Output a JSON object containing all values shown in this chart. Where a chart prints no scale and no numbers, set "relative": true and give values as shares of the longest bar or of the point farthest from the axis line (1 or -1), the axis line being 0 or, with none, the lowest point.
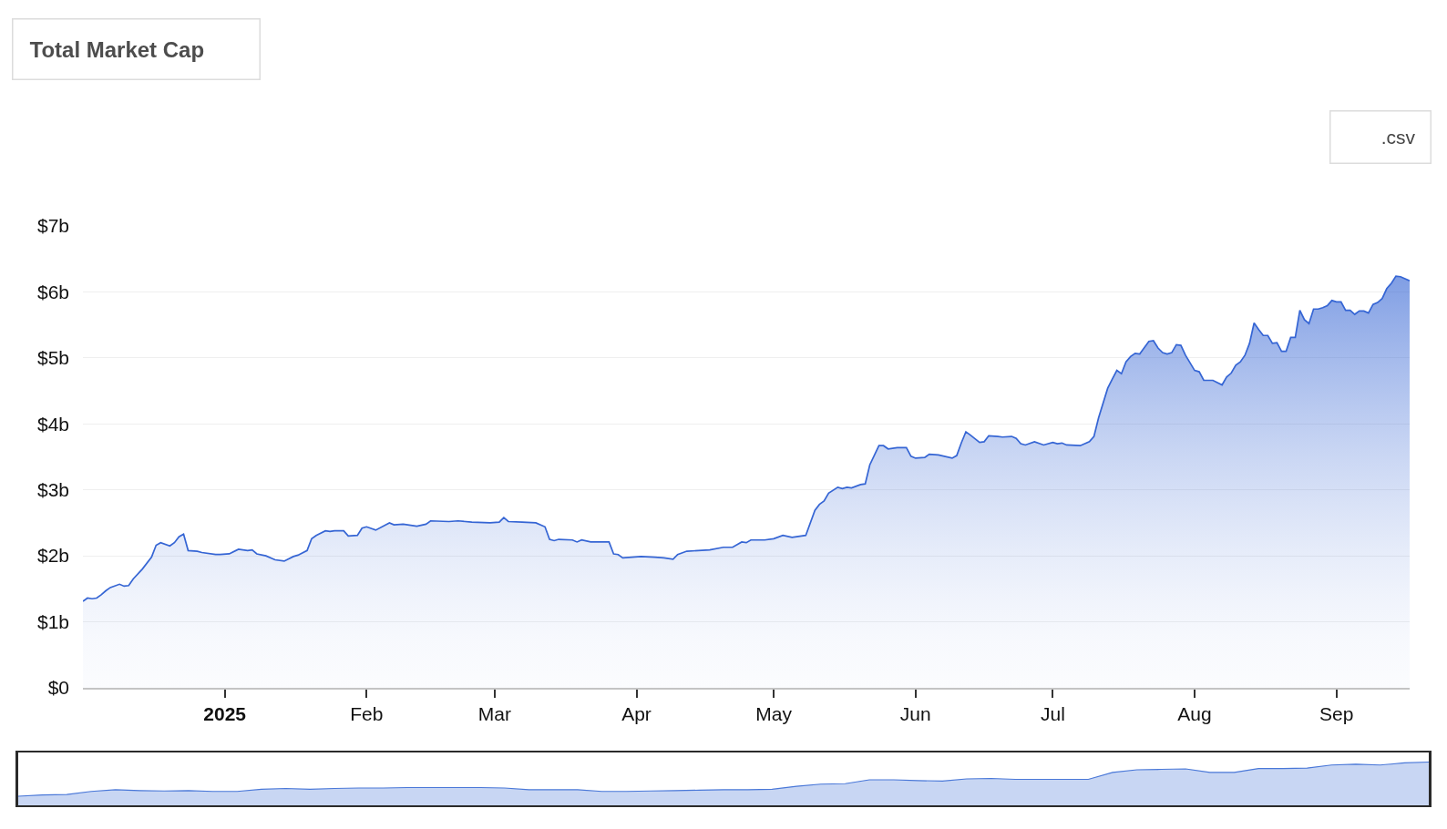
{
  "chart_data": [
    {
      "type": "area",
      "title": "Total Market Cap",
      "annotations": [
        ".csv"
      ],
      "x": [
        "2024-12-01",
        "2024-12-02",
        "2024-12-03",
        "2024-12-04",
        "2024-12-05",
        "2024-12-06",
        "2024-12-07",
        "2024-12-09",
        "2024-12-10",
        "2024-12-11",
        "2024-12-12",
        "2024-12-14",
        "2024-12-16",
        "2024-12-17",
        "2024-12-18",
        "2024-12-20",
        "2024-12-21",
        "2024-12-22",
        "2024-12-23",
        "2024-12-24",
        "2024-12-26",
        "2024-12-27",
        "2024-12-30",
        "2024-12-31",
        "2025-01-02",
        "2025-01-04",
        "2025-01-06",
        "2025-01-07",
        "2025-01-08",
        "2025-01-10",
        "2025-01-12",
        "2025-01-14",
        "2025-01-16",
        "2025-01-17",
        "2025-01-19",
        "2025-01-20",
        "2025-01-21",
        "2025-01-23",
        "2025-01-24",
        "2025-01-25",
        "2025-01-27",
        "2025-01-28",
        "2025-01-30",
        "2025-01-31",
        "2025-02-01",
        "2025-02-03",
        "2025-02-06",
        "2025-02-07",
        "2025-02-09",
        "2025-02-12",
        "2025-02-14",
        "2025-02-15",
        "2025-02-19",
        "2025-02-21",
        "2025-02-24",
        "2025-02-28",
        "2025-03-02",
        "2025-03-03",
        "2025-03-04",
        "2025-03-07",
        "2025-03-10",
        "2025-03-12",
        "2025-03-13",
        "2025-03-14",
        "2025-03-15",
        "2025-03-18",
        "2025-03-19",
        "2025-03-20",
        "2025-03-22",
        "2025-03-26",
        "2025-03-27",
        "2025-03-28",
        "2025-03-29",
        "2025-04-02",
        "2025-04-05",
        "2025-04-07",
        "2025-04-09",
        "2025-04-10",
        "2025-04-12",
        "2025-04-17",
        "2025-04-20",
        "2025-04-22",
        "2025-04-24",
        "2025-04-25",
        "2025-04-26",
        "2025-04-29",
        "2025-05-01",
        "2025-05-03",
        "2025-05-05",
        "2025-05-08",
        "2025-05-10",
        "2025-05-11",
        "2025-05-12",
        "2025-05-13",
        "2025-05-15",
        "2025-05-16",
        "2025-05-17",
        "2025-05-18",
        "2025-05-20",
        "2025-05-21",
        "2025-05-22",
        "2025-05-24",
        "2025-05-25",
        "2025-05-26",
        "2025-05-28",
        "2025-05-30",
        "2025-05-31",
        "2025-06-01",
        "2025-06-03",
        "2025-06-04",
        "2025-06-06",
        "2025-06-09",
        "2025-06-10",
        "2025-06-11",
        "2025-06-12",
        "2025-06-13",
        "2025-06-15",
        "2025-06-16",
        "2025-06-17",
        "2025-06-19",
        "2025-06-20",
        "2025-06-22",
        "2025-06-23",
        "2025-06-24",
        "2025-06-25",
        "2025-06-27",
        "2025-06-29",
        "2025-07-01",
        "2025-07-02",
        "2025-07-03",
        "2025-07-04",
        "2025-07-07",
        "2025-07-09",
        "2025-07-10",
        "2025-07-11",
        "2025-07-13",
        "2025-07-14",
        "2025-07-15",
        "2025-07-16",
        "2025-07-17",
        "2025-07-18",
        "2025-07-19",
        "2025-07-20",
        "2025-07-22",
        "2025-07-23",
        "2025-07-24",
        "2025-07-25",
        "2025-07-26",
        "2025-07-27",
        "2025-07-28",
        "2025-07-29",
        "2025-07-30",
        "2025-08-01",
        "2025-08-02",
        "2025-08-03",
        "2025-08-05",
        "2025-08-07",
        "2025-08-08",
        "2025-08-09",
        "2025-08-10",
        "2025-08-11",
        "2025-08-12",
        "2025-08-13",
        "2025-08-14",
        "2025-08-15",
        "2025-08-16",
        "2025-08-17",
        "2025-08-18",
        "2025-08-19",
        "2025-08-20",
        "2025-08-21",
        "2025-08-22",
        "2025-08-23",
        "2025-08-24",
        "2025-08-25",
        "2025-08-26",
        "2025-08-27",
        "2025-08-28",
        "2025-08-29",
        "2025-08-30",
        "2025-08-31",
        "2025-09-01",
        "2025-09-02",
        "2025-09-03",
        "2025-09-04",
        "2025-09-05",
        "2025-09-06",
        "2025-09-07",
        "2025-09-08",
        "2025-09-09",
        "2025-09-10",
        "2025-09-11",
        "2025-09-12",
        "2025-09-13",
        "2025-09-14",
        "2025-09-15",
        "2025-09-17"
      ],
      "series": [
        {
          "color": "#3565d4",
          "values": [
            1.31,
            1.36,
            1.35,
            1.36,
            1.41,
            1.47,
            1.52,
            1.57,
            1.54,
            1.55,
            1.65,
            1.8,
            1.98,
            2.16,
            2.2,
            2.15,
            2.2,
            2.29,
            2.33,
            2.08,
            2.07,
            2.05,
            2.02,
            2.02,
            2.03,
            2.1,
            2.08,
            2.09,
            2.03,
            2.0,
            1.94,
            1.92,
            1.99,
            2.01,
            2.08,
            2.26,
            2.31,
            2.38,
            2.37,
            2.38,
            2.38,
            2.3,
            2.31,
            2.42,
            2.44,
            2.39,
            2.5,
            2.47,
            2.48,
            2.45,
            2.48,
            2.53,
            2.52,
            2.53,
            2.51,
            2.5,
            2.51,
            2.58,
            2.52,
            2.51,
            2.5,
            2.44,
            2.25,
            2.23,
            2.25,
            2.24,
            2.21,
            2.24,
            2.21,
            2.21,
            2.03,
            2.02,
            1.97,
            1.99,
            1.98,
            1.97,
            1.95,
            2.02,
            2.07,
            2.09,
            2.13,
            2.13,
            2.21,
            2.2,
            2.24,
            2.24,
            2.26,
            2.31,
            2.28,
            2.31,
            2.69,
            2.78,
            2.83,
            2.95,
            3.04,
            3.02,
            3.04,
            3.03,
            3.08,
            3.09,
            3.38,
            3.67,
            3.67,
            3.62,
            3.64,
            3.64,
            3.51,
            3.48,
            3.49,
            3.54,
            3.53,
            3.48,
            3.52,
            3.71,
            3.88,
            3.83,
            3.72,
            3.73,
            3.82,
            3.81,
            3.8,
            3.81,
            3.78,
            3.7,
            3.68,
            3.73,
            3.68,
            3.72,
            3.7,
            3.71,
            3.68,
            3.67,
            3.73,
            3.81,
            4.09,
            4.54,
            4.68,
            4.81,
            4.76,
            4.94,
            5.02,
            5.07,
            5.06,
            5.25,
            5.26,
            5.15,
            5.08,
            5.06,
            5.08,
            5.2,
            5.19,
            5.04,
            4.81,
            4.79,
            4.66,
            4.66,
            4.59,
            4.71,
            4.77,
            4.89,
            4.94,
            5.04,
            5.22,
            5.53,
            5.43,
            5.34,
            5.34,
            5.22,
            5.23,
            5.1,
            5.1,
            5.31,
            5.31,
            5.72,
            5.58,
            5.52,
            5.74,
            5.74,
            5.76,
            5.79,
            5.87,
            5.85,
            5.85,
            5.72,
            5.72,
            5.66,
            5.71,
            5.71,
            5.68,
            5.81,
            5.84,
            5.9,
            6.05,
            6.13,
            6.24,
            6.23,
            6.17
          ]
        }
      ],
      "xlim": [
        "2024-12-01",
        "2025-09-17"
      ],
      "xticks": [
        {
          "value": "2025-01-01",
          "label": "2025"
        },
        {
          "value": "2025-02-01",
          "label": "Feb"
        },
        {
          "value": "2025-03-01",
          "label": "Mar"
        },
        {
          "value": "2025-04-01",
          "label": "Apr"
        },
        {
          "value": "2025-05-01",
          "label": "May"
        },
        {
          "value": "2025-06-01",
          "label": "Jun"
        },
        {
          "value": "2025-07-01",
          "label": "Jul"
        },
        {
          "value": "2025-08-01",
          "label": "Aug"
        },
        {
          "value": "2025-09-01",
          "label": "Sep"
        }
      ],
      "ylim": [
        0,
        7
      ],
      "yticks": [
        {
          "value": 0,
          "label": "$0"
        },
        {
          "value": 1,
          "label": "$1b"
        },
        {
          "value": 2,
          "label": "$2b"
        },
        {
          "value": 3,
          "label": "$3b"
        },
        {
          "value": 4,
          "label": "$4b"
        },
        {
          "value": 5,
          "label": "$5b"
        },
        {
          "value": 6,
          "label": "$6b"
        },
        {
          "value": 7,
          "label": "$7b"
        }
      ],
      "grid": "y"
    },
    {
      "type": "area",
      "relative": true,
      "categories": [
        null,
        null,
        null,
        null,
        null,
        null,
        null,
        null,
        null,
        null,
        null,
        null,
        null,
        null,
        null,
        null,
        null,
        null,
        null,
        null,
        null,
        null,
        null,
        null,
        null,
        null,
        null,
        null,
        null,
        null,
        null,
        null,
        null,
        null,
        null,
        null,
        null,
        null,
        null,
        null,
        null,
        null,
        null,
        null,
        null,
        null,
        null,
        null,
        null,
        null,
        null,
        null,
        null,
        null,
        null,
        null,
        null,
        null,
        null
      ],
      "series": [
        {
          "color": "#4a78d8",
          "values": [
            0.21,
            0.24,
            0.25,
            0.32,
            0.36,
            0.34,
            0.33,
            0.34,
            0.32,
            0.32,
            0.37,
            0.39,
            0.37,
            0.39,
            0.4,
            0.4,
            0.41,
            0.41,
            0.41,
            0.41,
            0.4,
            0.36,
            0.36,
            0.36,
            0.32,
            0.32,
            0.33,
            0.34,
            0.35,
            0.36,
            0.36,
            0.37,
            0.44,
            0.49,
            0.5,
            0.59,
            0.59,
            0.57,
            0.56,
            0.61,
            0.62,
            0.6,
            0.6,
            0.6,
            0.6,
            0.76,
            0.82,
            0.83,
            0.84,
            0.76,
            0.76,
            0.85,
            0.85,
            0.86,
            0.93,
            0.95,
            0.93,
            0.98,
            1.0
          ]
        }
      ]
    }
  ]
}
